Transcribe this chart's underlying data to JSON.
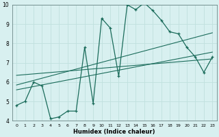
{
  "xlabel": "Humidex (Indice chaleur)",
  "bg_color": "#d8f0f0",
  "grid_color": "#c0e0de",
  "line_color": "#1a6b5a",
  "xlim": [
    -0.5,
    23.5
  ],
  "ylim": [
    4,
    10
  ],
  "xticks": [
    0,
    1,
    2,
    3,
    4,
    5,
    6,
    7,
    8,
    9,
    10,
    11,
    12,
    13,
    14,
    15,
    16,
    17,
    18,
    19,
    20,
    21,
    22,
    23
  ],
  "yticks": [
    4,
    5,
    6,
    7,
    8,
    9,
    10
  ],
  "main_x": [
    0,
    1,
    2,
    3,
    4,
    5,
    6,
    7,
    8,
    9,
    10,
    11,
    12,
    13,
    14,
    15,
    16,
    17,
    18,
    19,
    20,
    21,
    22,
    23
  ],
  "main_y": [
    4.8,
    5.0,
    6.0,
    5.8,
    4.1,
    4.2,
    4.5,
    4.5,
    7.8,
    4.9,
    9.3,
    8.8,
    6.3,
    10.0,
    9.75,
    10.1,
    9.7,
    9.2,
    8.6,
    8.5,
    7.8,
    7.3,
    6.5,
    7.3
  ],
  "line_upper_start": 5.85,
  "line_upper_end": 8.55,
  "line_mid_start": 6.35,
  "line_mid_end": 7.2,
  "line_lower_start": 5.6,
  "line_lower_end": 7.55,
  "xstart": 0,
  "xend": 23
}
